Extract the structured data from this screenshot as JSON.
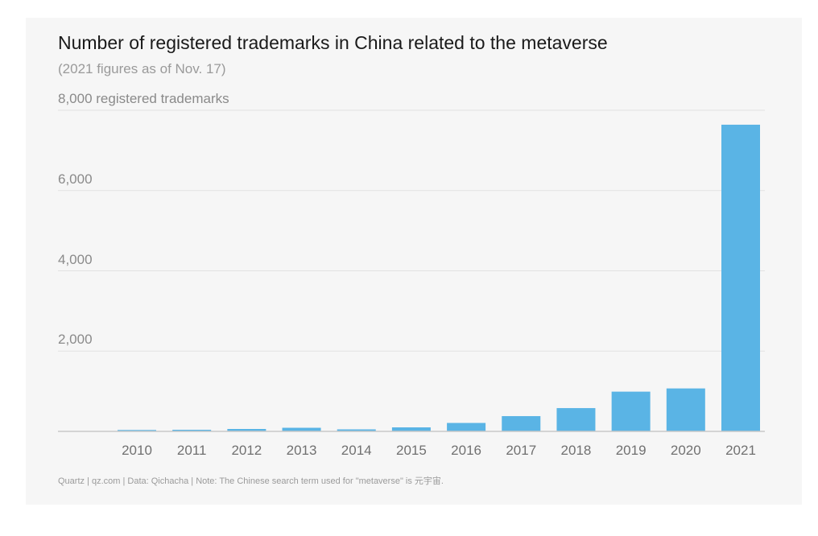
{
  "chart_data": {
    "type": "bar",
    "title": "Number of registered trademarks in China related to the metaverse",
    "subtitle": "(2021 figures as of Nov. 17)",
    "xlabel": "",
    "ylabel": "",
    "categories": [
      "2010",
      "2011",
      "2012",
      "2013",
      "2014",
      "2015",
      "2016",
      "2017",
      "2018",
      "2019",
      "2020",
      "2021"
    ],
    "values": [
      35,
      40,
      60,
      90,
      50,
      100,
      210,
      380,
      580,
      990,
      1070,
      7640
    ],
    "ylim": [
      0,
      8000
    ],
    "yticks": [
      {
        "value": 8000,
        "label": "8,000 registered trademarks"
      },
      {
        "value": 6000,
        "label": "6,000"
      },
      {
        "value": 4000,
        "label": "4,000"
      },
      {
        "value": 2000,
        "label": "2,000"
      }
    ],
    "grid": true,
    "legend": "none",
    "bar_color": "#5ab4e5",
    "source": "Quartz | qz.com | Data: Qichacha | Note: The Chinese search term used for \"metaverse\" is 元宇宙."
  }
}
